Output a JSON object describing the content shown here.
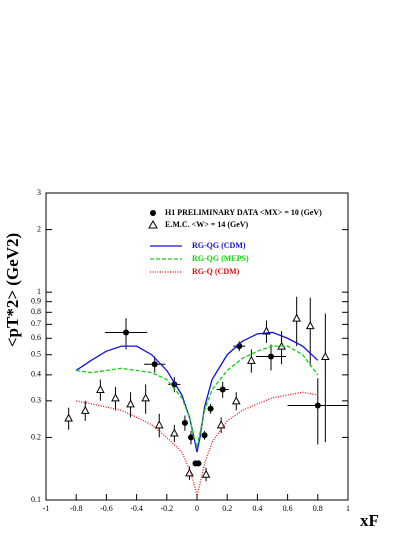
{
  "chart_data": {
    "type": "scatter",
    "x_label": "xF",
    "y_label": "<pT*2>  (GeV2)",
    "xlim": [
      -1,
      1
    ],
    "ylim": [
      0.1,
      3
    ],
    "log_y": true,
    "grid": false,
    "xticks": [
      -1,
      -0.8,
      -0.6,
      -0.4,
      -0.2,
      0,
      0.2,
      0.4,
      0.6,
      0.8,
      1
    ],
    "yticks": [
      0.1,
      0.2,
      0.3,
      0.4,
      0.5,
      0.6,
      0.7,
      0.8,
      0.9,
      1,
      2,
      3
    ],
    "series": [
      {
        "name": "H1 PRELIMINARY DATA <MX> = 10 (GeV)",
        "color": "#000000",
        "marker": "circle",
        "x": [
          -0.47,
          -0.28,
          -0.15,
          -0.08,
          -0.04,
          -0.01,
          0.01,
          0.05,
          0.09,
          0.17,
          0.28,
          0.49,
          0.8
        ],
        "values": [
          0.64,
          0.45,
          0.36,
          0.235,
          0.2,
          0.15,
          0.15,
          0.205,
          0.275,
          0.34,
          0.55,
          0.49,
          0.285
        ],
        "xerr": [
          0.14,
          0.07,
          0.04,
          0.02,
          0.015,
          0.01,
          0.01,
          0.015,
          0.02,
          0.04,
          0.04,
          0.1,
          0.2
        ],
        "yerr": [
          0.11,
          0.04,
          0.03,
          0.02,
          0.015,
          0.005,
          0.005,
          0.01,
          0.015,
          0.03,
          0.03,
          0.07,
          0.1
        ]
      },
      {
        "name": "E.M.C. <W> = 14 (GeV)",
        "color": "#000000",
        "marker": "triangle",
        "x": [
          -0.85,
          -0.74,
          -0.64,
          -0.54,
          -0.44,
          -0.34,
          -0.25,
          -0.15,
          -0.05,
          0.06,
          0.16,
          0.26,
          0.36,
          0.46,
          0.56,
          0.66,
          0.75,
          0.85
        ],
        "values": [
          0.248,
          0.27,
          0.34,
          0.31,
          0.29,
          0.31,
          0.23,
          0.21,
          0.135,
          0.133,
          0.23,
          0.3,
          0.47,
          0.65,
          0.55,
          0.75,
          0.69,
          0.49
        ],
        "yerr": [
          0.03,
          0.03,
          0.04,
          0.04,
          0.04,
          0.05,
          0.03,
          0.02,
          0.01,
          0.01,
          0.02,
          0.03,
          0.06,
          0.08,
          0.1,
          0.2,
          0.25,
          0.3
        ]
      },
      {
        "name": "RG-QG (CDM)",
        "color": "#1010e0",
        "dash": "none",
        "x": [
          -0.8,
          -0.7,
          -0.6,
          -0.5,
          -0.4,
          -0.3,
          -0.2,
          -0.1,
          -0.05,
          -0.02,
          0,
          0.02,
          0.05,
          0.1,
          0.2,
          0.3,
          0.4,
          0.5,
          0.6,
          0.7,
          0.8
        ],
        "values": [
          0.42,
          0.47,
          0.52,
          0.55,
          0.55,
          0.5,
          0.42,
          0.32,
          0.25,
          0.2,
          0.17,
          0.2,
          0.28,
          0.38,
          0.5,
          0.58,
          0.63,
          0.64,
          0.6,
          0.55,
          0.47
        ]
      },
      {
        "name": "RG-QG (MEPS)",
        "color": "#10d010",
        "dash": "4 2",
        "x": [
          -0.8,
          -0.7,
          -0.6,
          -0.5,
          -0.4,
          -0.3,
          -0.2,
          -0.1,
          -0.05,
          -0.02,
          0,
          0.02,
          0.05,
          0.1,
          0.2,
          0.3,
          0.4,
          0.5,
          0.6,
          0.7,
          0.8
        ],
        "values": [
          0.42,
          0.41,
          0.42,
          0.43,
          0.42,
          0.41,
          0.38,
          0.31,
          0.25,
          0.2,
          0.18,
          0.21,
          0.27,
          0.34,
          0.42,
          0.48,
          0.52,
          0.55,
          0.55,
          0.5,
          0.4
        ]
      },
      {
        "name": "RG-Q (CDM)",
        "color": "#e01010",
        "dash": "1 1.5",
        "x": [
          -0.8,
          -0.7,
          -0.6,
          -0.5,
          -0.4,
          -0.3,
          -0.2,
          -0.1,
          -0.05,
          -0.02,
          0,
          0.02,
          0.05,
          0.1,
          0.2,
          0.3,
          0.4,
          0.5,
          0.6,
          0.7,
          0.8
        ],
        "values": [
          0.3,
          0.29,
          0.28,
          0.27,
          0.25,
          0.23,
          0.2,
          0.17,
          0.14,
          0.12,
          0.105,
          0.12,
          0.15,
          0.19,
          0.24,
          0.27,
          0.29,
          0.31,
          0.32,
          0.33,
          0.32
        ]
      }
    ]
  }
}
